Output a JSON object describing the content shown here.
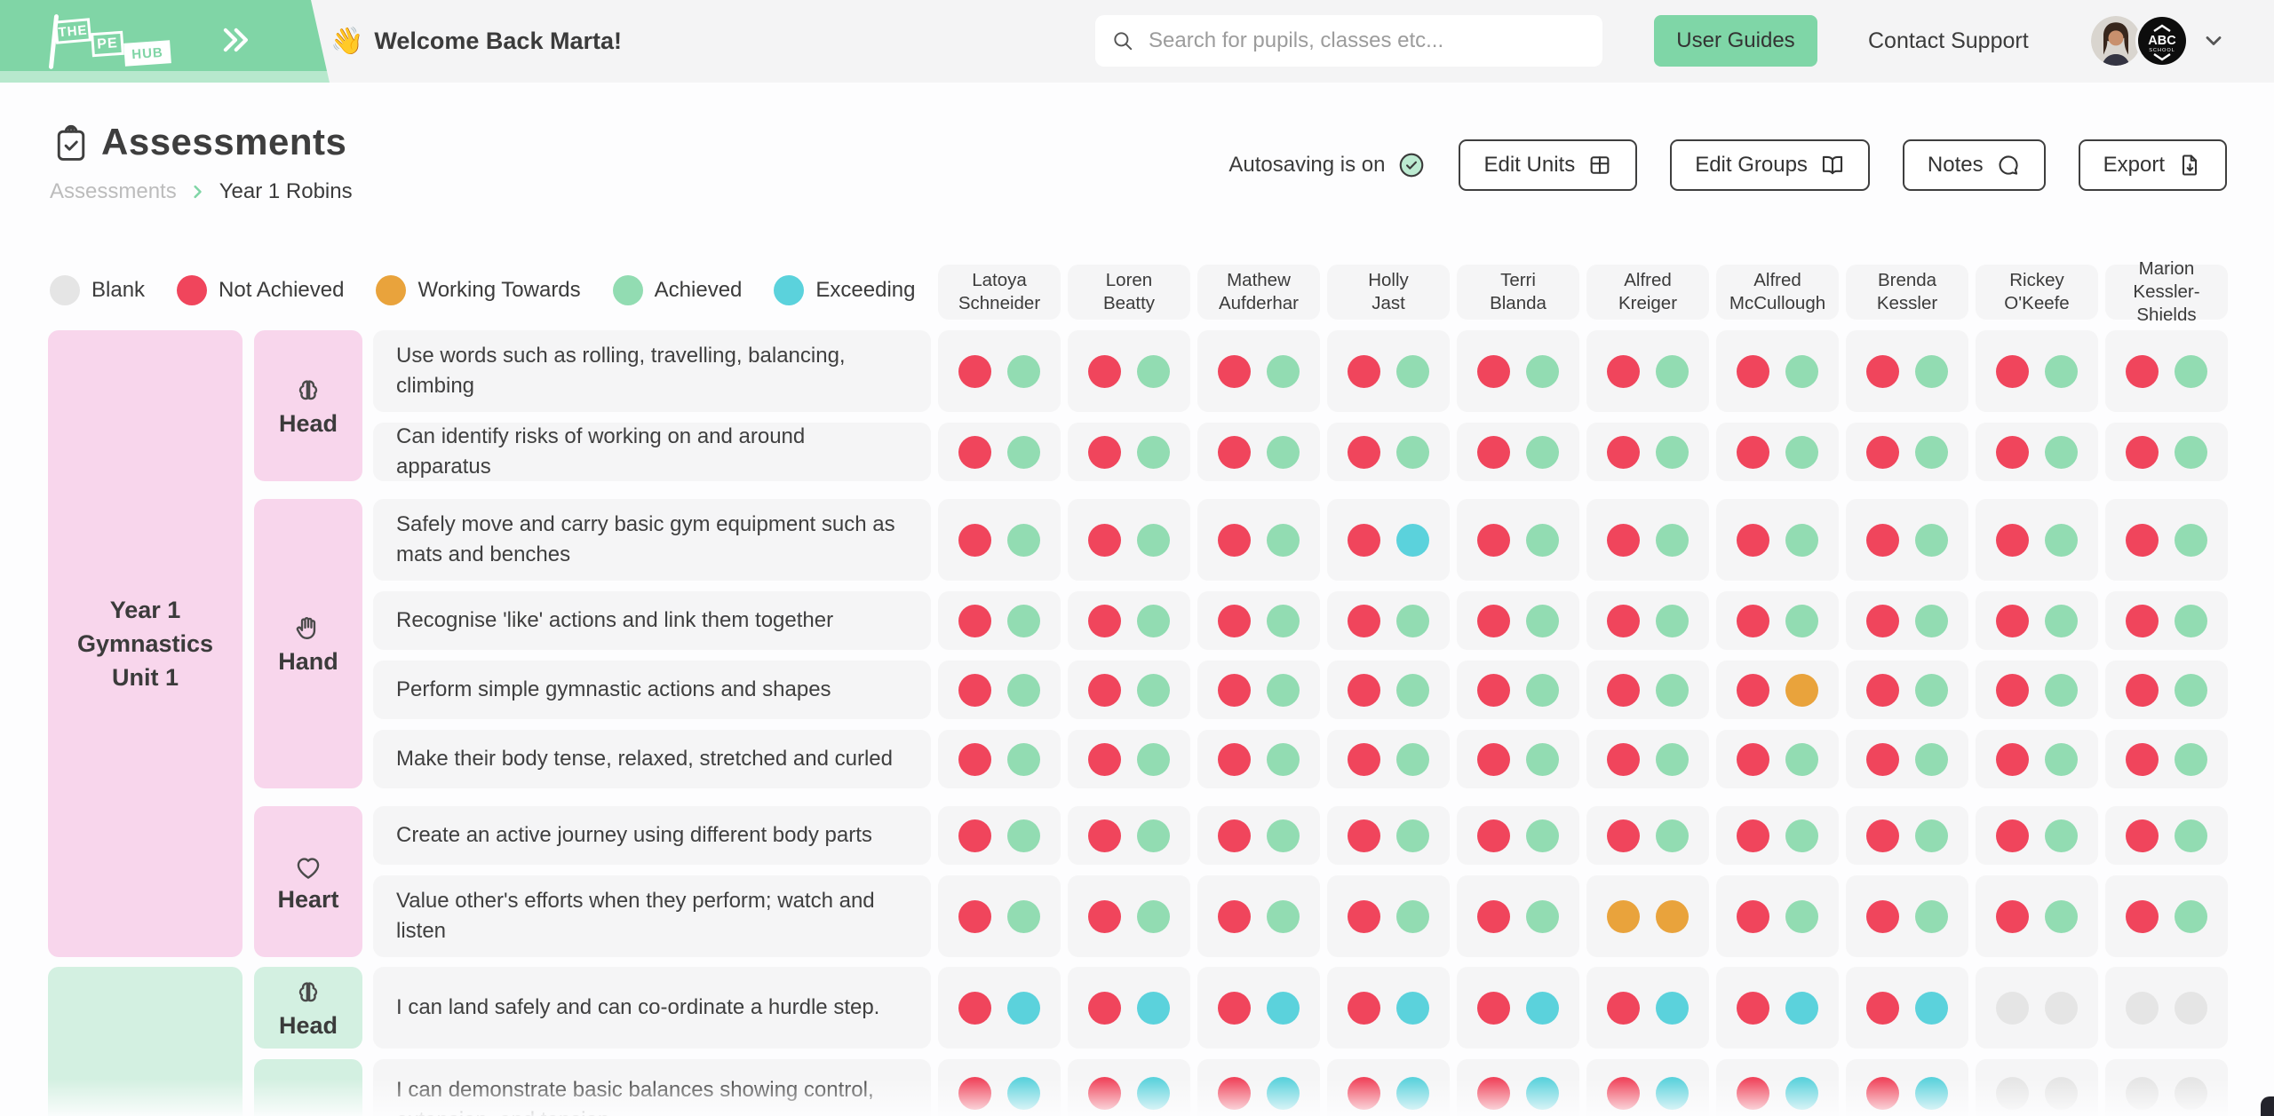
{
  "brand": {
    "logo_words": [
      "THE",
      "PE",
      "HUB"
    ]
  },
  "topbar": {
    "wave_emoji": "👋",
    "welcome": "Welcome Back Marta!",
    "search_placeholder": "Search for pupils, classes etc...",
    "user_guides_label": "User Guides",
    "contact_support_label": "Contact Support",
    "school_badge": {
      "line1": "ABC",
      "line2": "SCHOOL"
    }
  },
  "page_header": {
    "title": "Assessments",
    "breadcrumb": {
      "parent": "Assessments",
      "current": "Year 1 Robins"
    },
    "autosave_status": "Autosaving is on",
    "action_buttons": [
      {
        "label": "Edit Units",
        "icon": "grid-icon"
      },
      {
        "label": "Edit Groups",
        "icon": "book-icon"
      },
      {
        "label": "Notes",
        "icon": "chat-bubble-icon"
      },
      {
        "label": "Export",
        "icon": "export-doc-icon"
      }
    ]
  },
  "legend": [
    {
      "label": "Blank",
      "code": "B"
    },
    {
      "label": "Not Achieved",
      "code": "N"
    },
    {
      "label": "Working Towards",
      "code": "W"
    },
    {
      "label": "Achieved",
      "code": "A"
    },
    {
      "label": "Exceeding",
      "code": "E"
    }
  ],
  "mark_codes": {
    "B": "Blank",
    "N": "Not Achieved",
    "W": "Working Towards",
    "A": "Achieved",
    "E": "Exceeding"
  },
  "mark_colors": {
    "B": "#e5e5e5",
    "N": "#f0455c",
    "W": "#e9a33c",
    "A": "#92dcb2",
    "E": "#5bd2dc"
  },
  "theme": {
    "brand_green": "#80d5a6",
    "pink_unit": "#f8d6ec",
    "green_unit": "#d3f0e1",
    "cell_bg": "#f5f5f6",
    "header_bg": "#f4f4f5"
  },
  "students": [
    {
      "first": "Latoya",
      "last": "Schneider"
    },
    {
      "first": "Loren",
      "last": "Beatty"
    },
    {
      "first": "Mathew",
      "last": "Aufderhar"
    },
    {
      "first": "Holly",
      "last": "Jast"
    },
    {
      "first": "Terri",
      "last": "Blanda"
    },
    {
      "first": "Alfred",
      "last": "Kreiger"
    },
    {
      "first": "Alfred",
      "last": "McCullough"
    },
    {
      "first": "Brenda",
      "last": "Kessler"
    },
    {
      "first": "Rickey",
      "last": "O'Keefe"
    },
    {
      "first": "Marion",
      "last": "Kessler-Shields"
    }
  ],
  "units": [
    {
      "name_lines": [
        "Year 1 Gymnastics",
        "Unit 1"
      ],
      "theme": "pink",
      "sections": [
        {
          "label": "Head",
          "icon": "brain-icon",
          "row_count": 2
        },
        {
          "label": "Hand",
          "icon": "hand-icon",
          "row_count": 4
        },
        {
          "label": "Heart",
          "icon": "heart-icon",
          "row_count": 2
        }
      ]
    },
    {
      "name_lines": [],
      "theme": "green",
      "sections": [
        {
          "label": "Head",
          "icon": "brain-icon",
          "row_count": 1
        },
        {
          "label": "",
          "icon": "",
          "row_count": 1
        }
      ]
    }
  ],
  "rows": [
    {
      "criterion": "Use words such as rolling, travelling, balancing, climbing",
      "marks": [
        "NA",
        "NA",
        "NA",
        "NA",
        "NA",
        "NA",
        "NA",
        "NA",
        "NA",
        "NA"
      ]
    },
    {
      "criterion": "Can identify risks of working on and around apparatus",
      "marks": [
        "NA",
        "NA",
        "NA",
        "NA",
        "NA",
        "NA",
        "NA",
        "NA",
        "NA",
        "NA"
      ]
    },
    {
      "criterion": "Safely move and carry basic gym equipment such as mats and benches",
      "marks": [
        "NA",
        "NA",
        "NA",
        "NE",
        "NA",
        "NA",
        "NA",
        "NA",
        "NA",
        "NA"
      ]
    },
    {
      "criterion": "Recognise 'like' actions and link them together",
      "marks": [
        "NA",
        "NA",
        "NA",
        "NA",
        "NA",
        "NA",
        "NA",
        "NA",
        "NA",
        "NA"
      ]
    },
    {
      "criterion": "Perform simple gymnastic actions and shapes",
      "marks": [
        "NA",
        "NA",
        "NA",
        "NA",
        "NA",
        "NA",
        "NW",
        "NA",
        "NA",
        "NA"
      ]
    },
    {
      "criterion": "Make their body tense, relaxed, stretched and curled",
      "marks": [
        "NA",
        "NA",
        "NA",
        "NA",
        "NA",
        "NA",
        "NA",
        "NA",
        "NA",
        "NA"
      ]
    },
    {
      "criterion": "Create an active journey using different body parts",
      "marks": [
        "NA",
        "NA",
        "NA",
        "NA",
        "NA",
        "NA",
        "NA",
        "NA",
        "NA",
        "NA"
      ]
    },
    {
      "criterion": "Value other's efforts when they perform; watch and listen",
      "marks": [
        "NA",
        "NA",
        "NA",
        "NA",
        "NA",
        "WW",
        "NA",
        "NA",
        "NA",
        "NA"
      ]
    },
    {
      "criterion": "I can land safely and can co-ordinate a hurdle step.",
      "marks": [
        "NE",
        "NE",
        "NE",
        "NE",
        "NE",
        "NE",
        "NE",
        "NE",
        "BB",
        "BB"
      ]
    },
    {
      "criterion": "I can demonstrate basic balances showing control, extension, and tension",
      "marks": [
        "NE",
        "NE",
        "NE",
        "NE",
        "NE",
        "NE",
        "NE",
        "NE",
        "BB",
        "BB"
      ]
    }
  ]
}
